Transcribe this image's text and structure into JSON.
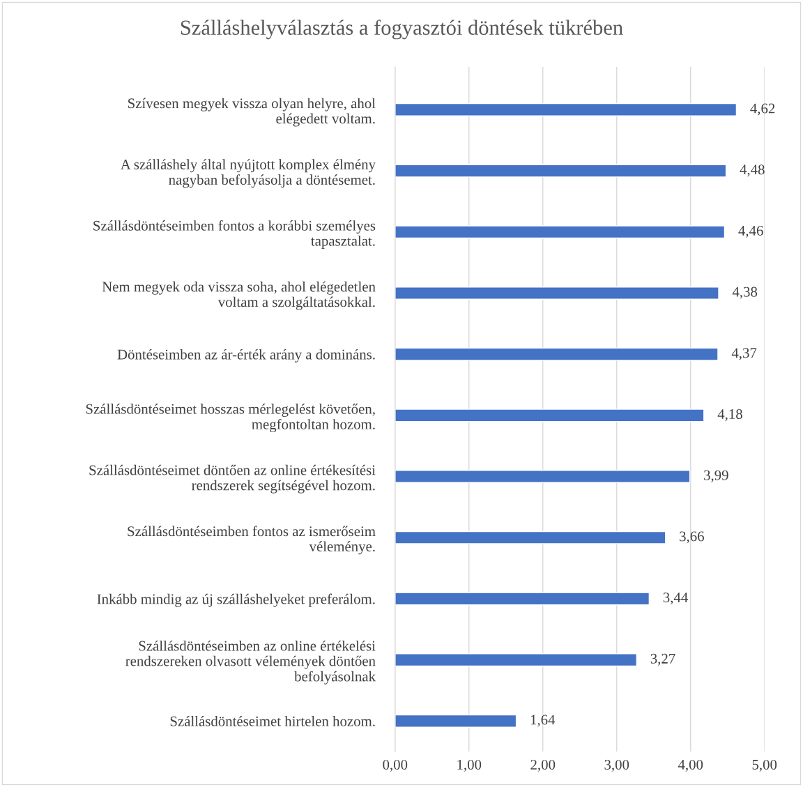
{
  "chart_data": {
    "type": "bar",
    "orientation": "horizontal",
    "title": "Szálláshelyválasztás a fogyasztói döntések tükrében",
    "categories": [
      "Szívesen megyek vissza olyan helyre, ahol elégedett voltam.",
      "A szálláshely által nyújtott komplex élmény nagyban befolyásolja a döntésemet.",
      "Szállásdöntéseimben fontos a korábbi személyes tapasztalat.",
      "Nem megyek oda vissza soha, ahol elégedetlen voltam a szolgáltatásokkal.",
      "Döntéseimben az ár-érték arány a domináns.",
      "Szállásdöntéseimet hosszas mérlegelést követően, megfontoltan hozom.",
      "Szállásdöntéseimet döntően az online értékesítési rendszerek segítségével hozom.",
      "Szállásdöntéseimben fontos az ismerőseim véleménye.",
      "Inkább mindig az új szálláshelyeket preferálom.",
      "Szállásdöntéseimben az online értékelési rendszereken olvasott vélemények döntően befolyásolnak",
      "Szállásdöntéseimet hirtelen hozom."
    ],
    "values": [
      4.62,
      4.48,
      4.46,
      4.38,
      4.37,
      4.18,
      3.99,
      3.66,
      3.44,
      3.27,
      1.64
    ],
    "value_labels": [
      "4,62",
      "4,48",
      "4,46",
      "4,38",
      "4,37",
      "4,18",
      "3,99",
      "3,66",
      "3,44",
      "3,27",
      "1,64"
    ],
    "color": "#4472c4",
    "xlim": [
      0,
      5
    ],
    "xticks": [
      {
        "value": 0,
        "label": "0,00"
      },
      {
        "value": 1,
        "label": "1,00"
      },
      {
        "value": 2,
        "label": "2,00"
      },
      {
        "value": 3,
        "label": "3,00"
      },
      {
        "value": 4,
        "label": "4,00"
      },
      {
        "value": 5,
        "label": "5,00"
      }
    ],
    "grid": "x",
    "legend": false
  }
}
